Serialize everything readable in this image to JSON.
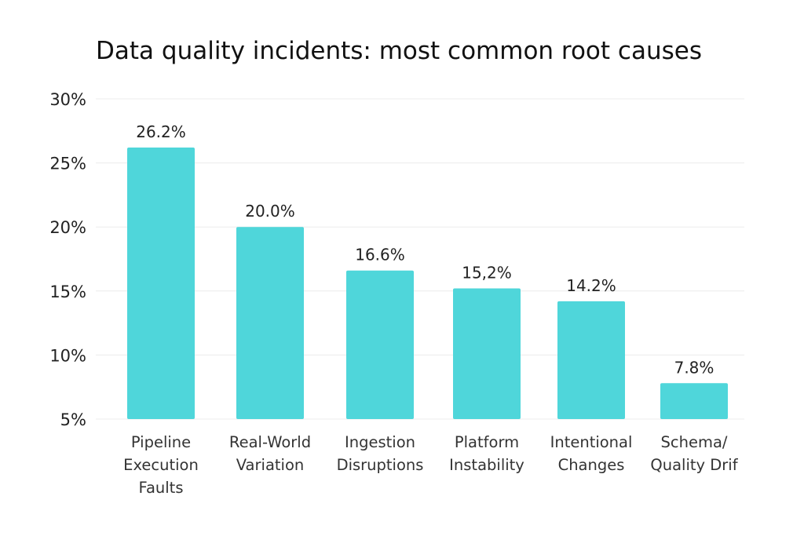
{
  "chart_data": {
    "type": "bar",
    "title": "Data quality incidents: most common root causes",
    "xlabel": "",
    "ylabel": "",
    "categories": [
      [
        "Pipeline",
        "Execution",
        "Faults"
      ],
      [
        "Real-World",
        "Variation"
      ],
      [
        "Ingestion",
        "Disruptions"
      ],
      [
        "Platform",
        "Instability"
      ],
      [
        "Intentional",
        "Changes"
      ],
      [
        "Schema/",
        "Quality Drif"
      ]
    ],
    "values": [
      26.2,
      20.0,
      16.6,
      15.2,
      14.2,
      7.8
    ],
    "value_labels": [
      "26.2%",
      "20.0%",
      "16.6%",
      "15,2%",
      "14.2%",
      "7.8%"
    ],
    "yticks": [
      5,
      10,
      15,
      20,
      25,
      30
    ],
    "ytick_labels": [
      "5%",
      "10%",
      "15%",
      "20%",
      "25%",
      "30%"
    ],
    "ylim": [
      5,
      30
    ],
    "grid": true,
    "bar_color": "#4fd6da"
  }
}
